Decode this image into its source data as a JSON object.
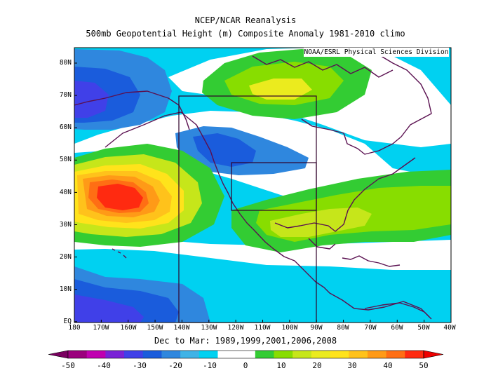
{
  "header": {
    "line1": "NCEP/NCAR Reanalysis",
    "line2": "500mb Geopotential Height (m) Composite Anomaly 1981-2010 climo"
  },
  "credit": "NOAA/ESRL Physical Sciences Division",
  "footer": "Dec to Mar: 1989,1999,2001,2006,2008",
  "lat_labels": [
    "80N",
    "70N",
    "60N",
    "50N",
    "40N",
    "30N",
    "20N",
    "10N",
    "EQ"
  ],
  "lon_labels": [
    "180",
    "170W",
    "160W",
    "150W",
    "140W",
    "130W",
    "120W",
    "110W",
    "100W",
    "90W",
    "80W",
    "70W",
    "60W",
    "50W",
    "40W"
  ],
  "colorbar": {
    "labels": [
      "-50",
      "-40",
      "-30",
      "-20",
      "-10",
      "0",
      "10",
      "20",
      "30",
      "40",
      "50"
    ],
    "colors": [
      "#7a0060",
      "#9b007d",
      "#c000b0",
      "#7a22d6",
      "#4040e8",
      "#1a5cdc",
      "#2f87de",
      "#3fb3e6",
      "#00d1f1",
      "#ffffff",
      "#ffffff",
      "#33cc33",
      "#88dd00",
      "#c6e61a",
      "#ebeb1e",
      "#ffe31b",
      "#ffc21b",
      "#ff9a17",
      "#ff6e14",
      "#ff2a10",
      "#ee0000"
    ]
  },
  "map": {
    "domain": {
      "lon": [
        -180,
        -40
      ],
      "lat": [
        0,
        85
      ]
    },
    "colors": {
      "coast": "#5a1050",
      "box": "#30002a"
    }
  }
}
